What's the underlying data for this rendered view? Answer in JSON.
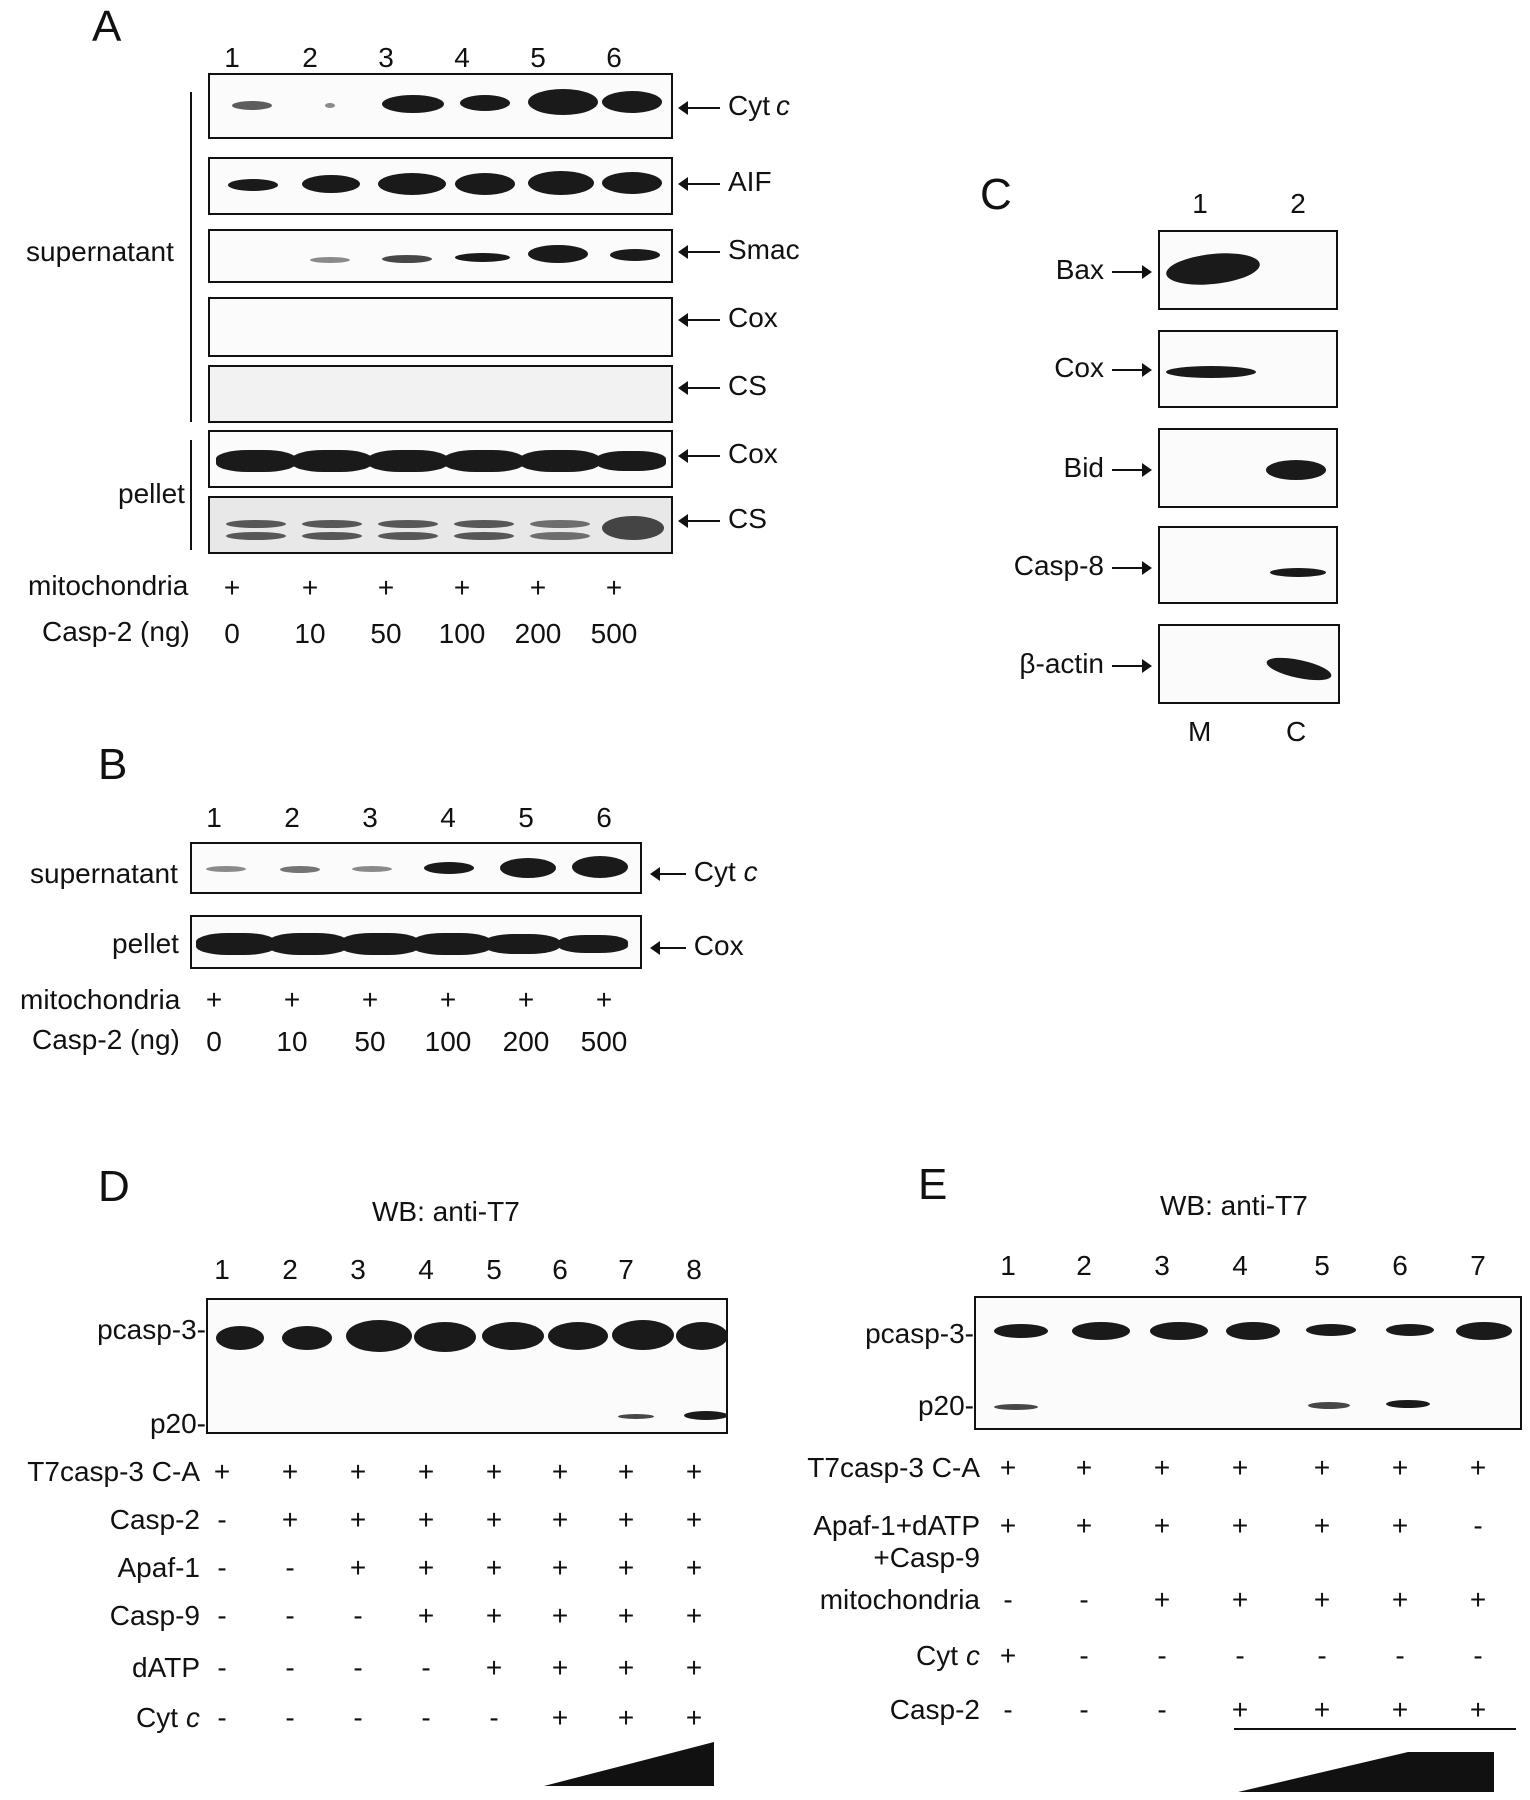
{
  "panelA": {
    "label": "A",
    "lanes": [
      "1",
      "2",
      "3",
      "4",
      "5",
      "6"
    ],
    "rows": [
      {
        "label": "Cyt",
        "italic": "c"
      },
      {
        "label": "AIF",
        "italic": ""
      },
      {
        "label": "Smac",
        "italic": ""
      },
      {
        "label": "Cox",
        "italic": ""
      },
      {
        "label": "CS",
        "italic": ""
      },
      {
        "label": "Cox",
        "italic": ""
      },
      {
        "label": "CS",
        "italic": ""
      }
    ],
    "group_supernatant": "supernatant",
    "group_pellet": "pellet",
    "mito_label": "mitochondria",
    "mito_signs": [
      "+",
      "+",
      "+",
      "+",
      "+",
      "+"
    ],
    "casp_label": "Casp-2 (ng)",
    "casp_values": [
      "0",
      "10",
      "50",
      "100",
      "200",
      "500"
    ]
  },
  "panelB": {
    "label": "B",
    "lanes": [
      "1",
      "2",
      "3",
      "4",
      "5",
      "6"
    ],
    "row1_group": "supernatant",
    "row1_label": "Cyt",
    "row1_italic": "c",
    "row2_group": "pellet",
    "row2_label": "Cox",
    "mito_label": "mitochondria",
    "mito_signs": [
      "+",
      "+",
      "+",
      "+",
      "+",
      "+"
    ],
    "casp_label": "Casp-2 (ng)",
    "casp_values": [
      "0",
      "10",
      "50",
      "100",
      "200",
      "500"
    ]
  },
  "panelC": {
    "label": "C",
    "lanes": [
      "1",
      "2"
    ],
    "rows": [
      "Bax",
      "Cox",
      "Bid",
      "Casp-8",
      "β-actin"
    ],
    "bottom": [
      "M",
      "C"
    ]
  },
  "panelD": {
    "label": "D",
    "title": "WB: anti-T7",
    "lanes": [
      "1",
      "2",
      "3",
      "4",
      "5",
      "6",
      "7",
      "8"
    ],
    "band_top": "pcasp-3-",
    "band_bottom": "p20-",
    "conditions": [
      {
        "label": "T7casp-3 C-A",
        "italic": "",
        "signs": [
          "+",
          "+",
          "+",
          "+",
          "+",
          "+",
          "+",
          "+"
        ]
      },
      {
        "label": "Casp-2",
        "italic": "",
        "signs": [
          "-",
          "+",
          "+",
          "+",
          "+",
          "+",
          "+",
          "+"
        ]
      },
      {
        "label": "Apaf-1",
        "italic": "",
        "signs": [
          "-",
          "-",
          "+",
          "+",
          "+",
          "+",
          "+",
          "+"
        ]
      },
      {
        "label": "Casp-9",
        "italic": "",
        "signs": [
          "-",
          "-",
          "-",
          "+",
          "+",
          "+",
          "+",
          "+"
        ]
      },
      {
        "label": "dATP",
        "italic": "",
        "signs": [
          "-",
          "-",
          "-",
          "-",
          "+",
          "+",
          "+",
          "+"
        ]
      },
      {
        "label": "Cyt",
        "italic": "c",
        "signs": [
          "-",
          "-",
          "-",
          "-",
          "-",
          "+",
          "+",
          "+"
        ]
      }
    ]
  },
  "panelE": {
    "label": "E",
    "title": "WB: anti-T7",
    "lanes": [
      "1",
      "2",
      "3",
      "4",
      "5",
      "6",
      "7"
    ],
    "band_top": "pcasp-3-",
    "band_bottom": "p20-",
    "conditions": [
      {
        "label": "T7casp-3 C-A",
        "line2": "",
        "italic": "",
        "signs": [
          "+",
          "+",
          "+",
          "+",
          "+",
          "+",
          "+"
        ]
      },
      {
        "label": "Apaf-1+dATP",
        "line2": "+Casp-9",
        "italic": "",
        "signs": [
          "+",
          "+",
          "+",
          "+",
          "+",
          "+",
          "-"
        ]
      },
      {
        "label": "mitochondria",
        "line2": "",
        "italic": "",
        "signs": [
          "-",
          "-",
          "+",
          "+",
          "+",
          "+",
          "+"
        ]
      },
      {
        "label": "Cyt",
        "line2": "",
        "italic": "c",
        "signs": [
          "+",
          "-",
          "-",
          "-",
          "-",
          "-",
          "-"
        ]
      },
      {
        "label": "Casp-2",
        "line2": "",
        "italic": "",
        "signs": [
          "-",
          "-",
          "-",
          "+",
          "+",
          "+",
          "+"
        ]
      }
    ]
  }
}
